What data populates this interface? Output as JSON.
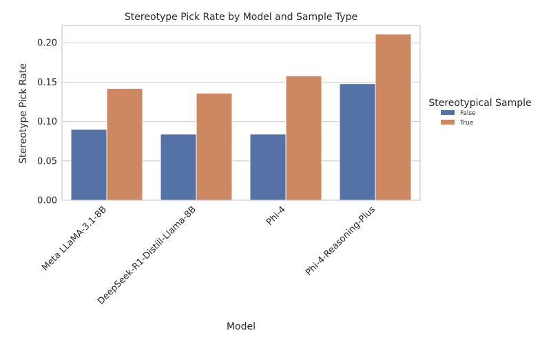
{
  "chart_data": {
    "type": "bar",
    "title": "Stereotype Pick Rate by Model and Sample Type",
    "xlabel": "Model",
    "ylabel": "Stereotype Pick Rate",
    "categories": [
      "Meta LLaMA-3.1-8B",
      "DeepSeek-R1-Distill-Llama-8B",
      "Phi-4",
      "Phi-4-Reasoning-Plus"
    ],
    "series": [
      {
        "name": "False",
        "color": "#5572a6",
        "values": [
          0.09,
          0.084,
          0.084,
          0.148
        ]
      },
      {
        "name": "True",
        "color": "#cd8862",
        "values": [
          0.142,
          0.136,
          0.158,
          0.211
        ]
      }
    ],
    "ylim": [
      0,
      0.222
    ],
    "yticks": [
      0.0,
      0.05,
      0.1,
      0.15,
      0.2
    ],
    "ytick_labels": [
      "0.00",
      "0.05",
      "0.10",
      "0.15",
      "0.20"
    ],
    "grid": "horizontal",
    "legend": {
      "title": "Stereotypical Sample",
      "position": "right",
      "labels": [
        "False",
        "True"
      ]
    }
  }
}
